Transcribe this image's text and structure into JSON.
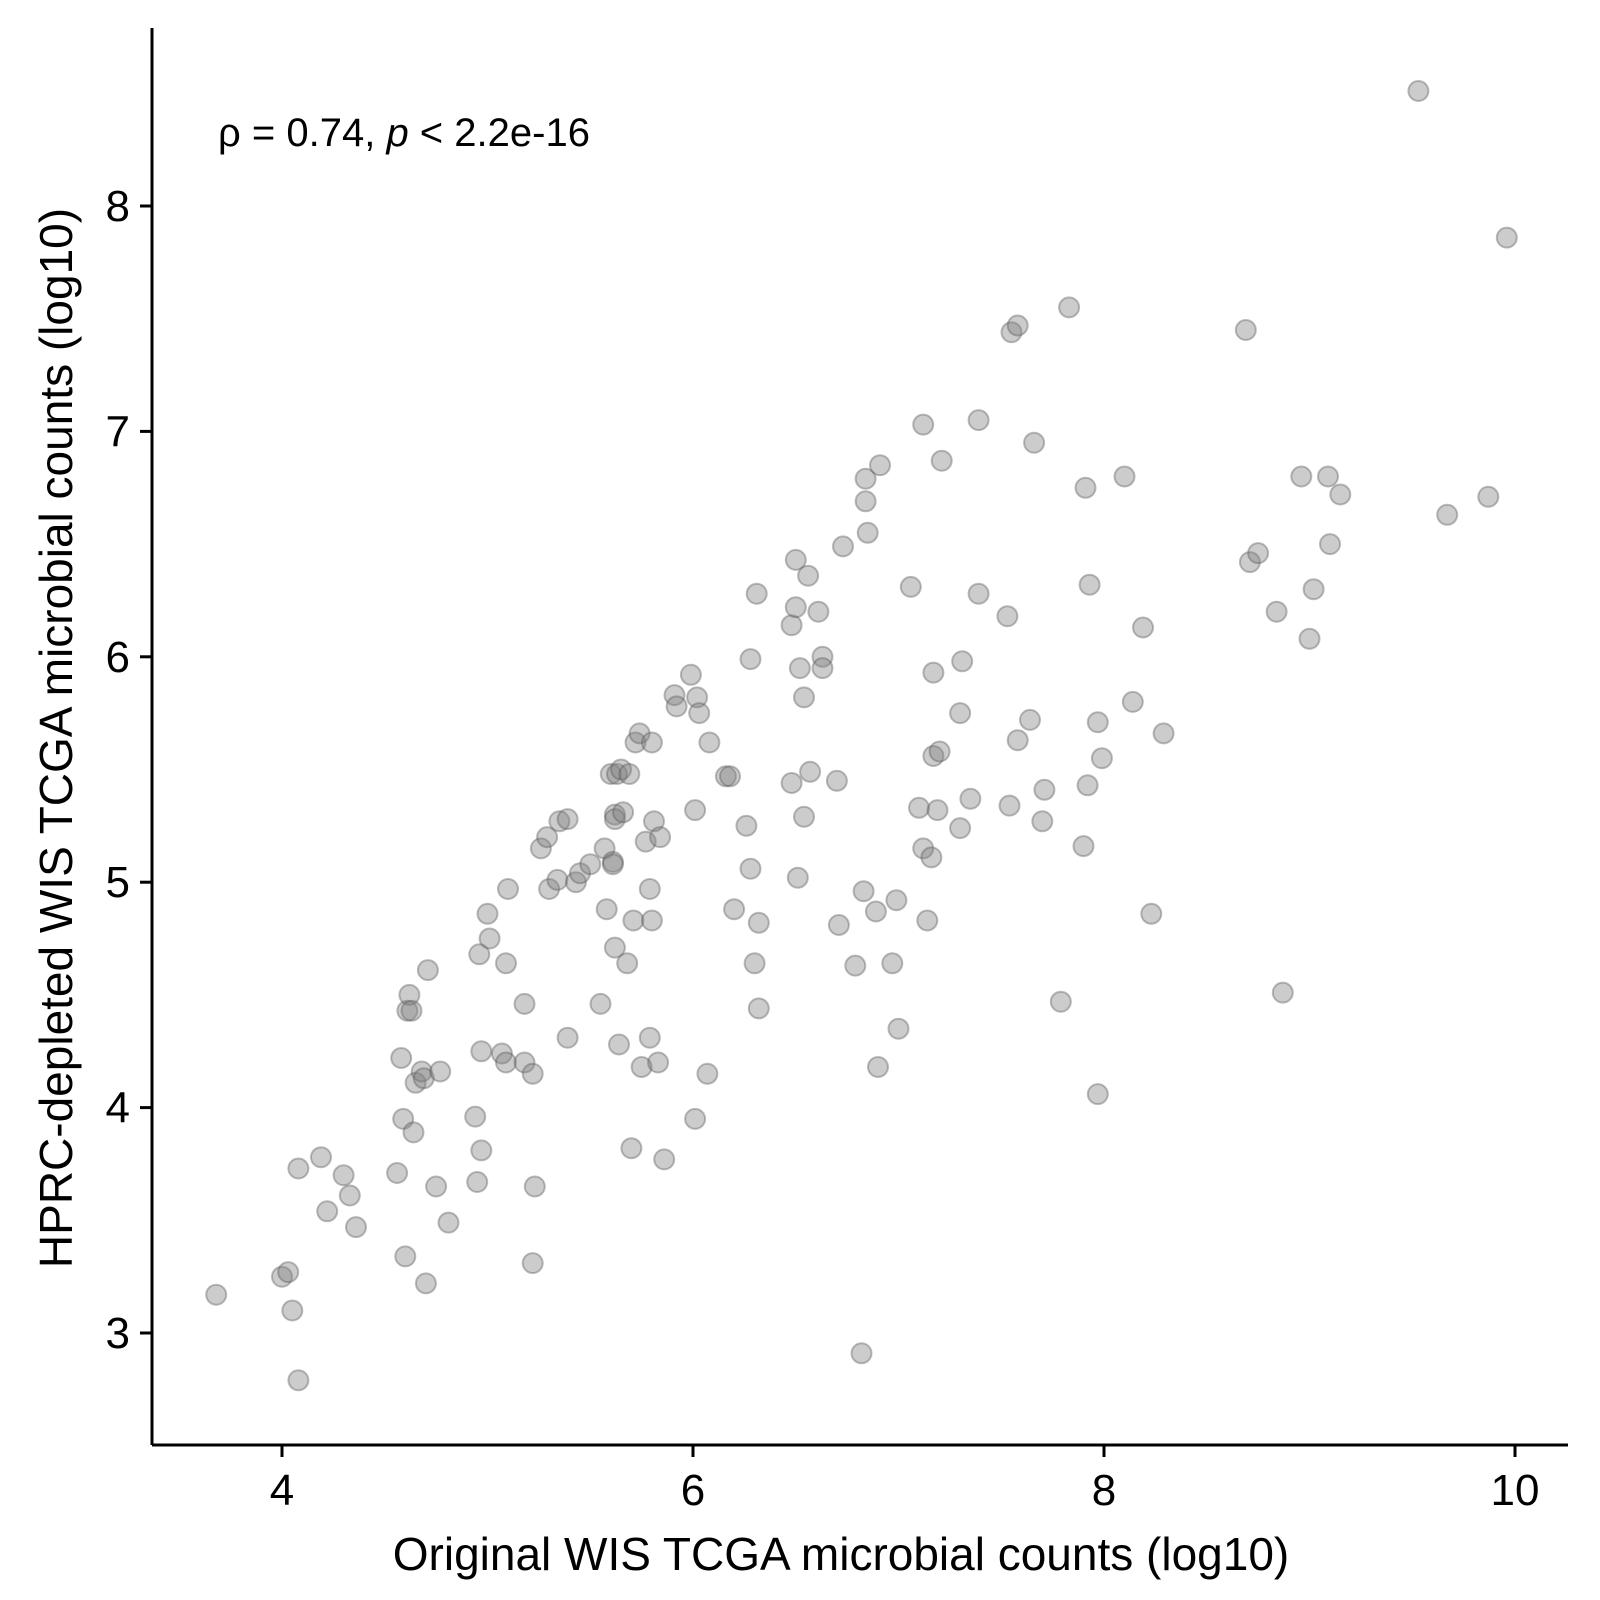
{
  "chart_data": {
    "type": "scatter",
    "xlabel": "Original WIS TCGA microbial counts (log10)",
    "ylabel": "HPRC-depleted WIS TCGA microbial counts (log10)",
    "annotation": {
      "rho_symbol": "ρ",
      "rho_text": " = 0.74, ",
      "p_symbol": "p",
      "p_text": " < 2.2e-16"
    },
    "xlim": [
      3.3,
      10.3
    ],
    "ylim": [
      2.5,
      8.8
    ],
    "xticks": [
      4,
      6,
      8,
      10
    ],
    "yticks": [
      3,
      4,
      5,
      6,
      7,
      8
    ],
    "xtick_labels": [
      "4",
      "6",
      "8",
      "10"
    ],
    "ytick_labels": [
      "3",
      "4",
      "5",
      "6",
      "7",
      "8"
    ],
    "grid": false,
    "legend": "none",
    "point_color": "#7f7f7f",
    "points": [
      [
        3.68,
        3.17
      ],
      [
        4.0,
        3.25
      ],
      [
        4.03,
        3.27
      ],
      [
        4.05,
        3.1
      ],
      [
        4.08,
        2.79
      ],
      [
        4.08,
        3.73
      ],
      [
        4.19,
        3.78
      ],
      [
        4.22,
        3.54
      ],
      [
        4.3,
        3.7
      ],
      [
        4.33,
        3.61
      ],
      [
        4.36,
        3.47
      ],
      [
        4.56,
        3.71
      ],
      [
        4.58,
        4.22
      ],
      [
        4.59,
        3.95
      ],
      [
        4.6,
        3.34
      ],
      [
        4.61,
        4.43
      ],
      [
        4.62,
        4.5
      ],
      [
        4.63,
        4.43
      ],
      [
        4.64,
        3.89
      ],
      [
        4.65,
        4.11
      ],
      [
        4.68,
        4.16
      ],
      [
        4.69,
        4.13
      ],
      [
        4.7,
        3.22
      ],
      [
        4.71,
        4.61
      ],
      [
        4.75,
        3.65
      ],
      [
        4.77,
        4.16
      ],
      [
        4.81,
        3.49
      ],
      [
        4.94,
        3.96
      ],
      [
        4.95,
        3.67
      ],
      [
        4.96,
        4.68
      ],
      [
        4.97,
        3.81
      ],
      [
        4.97,
        4.25
      ],
      [
        5.0,
        4.86
      ],
      [
        5.01,
        4.75
      ],
      [
        5.07,
        4.24
      ],
      [
        5.09,
        4.2
      ],
      [
        5.09,
        4.64
      ],
      [
        5.1,
        4.97
      ],
      [
        5.18,
        4.46
      ],
      [
        5.18,
        4.2
      ],
      [
        5.22,
        4.15
      ],
      [
        5.22,
        3.31
      ],
      [
        5.23,
        3.65
      ],
      [
        5.26,
        5.15
      ],
      [
        5.29,
        5.2
      ],
      [
        5.3,
        4.97
      ],
      [
        5.34,
        5.01
      ],
      [
        5.35,
        5.27
      ],
      [
        5.39,
        5.28
      ],
      [
        5.39,
        4.31
      ],
      [
        5.43,
        5.0
      ],
      [
        5.45,
        5.04
      ],
      [
        5.5,
        5.08
      ],
      [
        5.55,
        4.46
      ],
      [
        5.57,
        5.15
      ],
      [
        5.58,
        4.88
      ],
      [
        5.6,
        5.48
      ],
      [
        5.61,
        5.09
      ],
      [
        5.61,
        5.08
      ],
      [
        5.62,
        5.3
      ],
      [
        5.62,
        5.28
      ],
      [
        5.62,
        4.71
      ],
      [
        5.63,
        5.48
      ],
      [
        5.64,
        4.28
      ],
      [
        5.65,
        5.5
      ],
      [
        5.66,
        5.31
      ],
      [
        5.68,
        4.64
      ],
      [
        5.69,
        5.48
      ],
      [
        5.7,
        3.82
      ],
      [
        5.71,
        4.83
      ],
      [
        5.72,
        5.62
      ],
      [
        5.74,
        5.66
      ],
      [
        5.75,
        4.18
      ],
      [
        5.77,
        5.18
      ],
      [
        5.79,
        4.97
      ],
      [
        5.79,
        4.31
      ],
      [
        5.8,
        5.62
      ],
      [
        5.8,
        4.83
      ],
      [
        5.81,
        5.27
      ],
      [
        5.83,
        4.2
      ],
      [
        5.84,
        5.2
      ],
      [
        5.86,
        3.77
      ],
      [
        5.91,
        5.83
      ],
      [
        5.92,
        5.78
      ],
      [
        5.99,
        5.92
      ],
      [
        6.01,
        5.32
      ],
      [
        6.01,
        3.95
      ],
      [
        6.02,
        5.82
      ],
      [
        6.03,
        5.75
      ],
      [
        6.07,
        4.15
      ],
      [
        6.08,
        5.62
      ],
      [
        6.16,
        5.47
      ],
      [
        6.18,
        5.47
      ],
      [
        6.2,
        4.88
      ],
      [
        6.26,
        5.25
      ],
      [
        6.28,
        5.99
      ],
      [
        6.28,
        5.06
      ],
      [
        6.3,
        4.64
      ],
      [
        6.31,
        6.28
      ],
      [
        6.32,
        4.82
      ],
      [
        6.32,
        4.44
      ],
      [
        6.48,
        6.14
      ],
      [
        6.48,
        5.44
      ],
      [
        6.5,
        6.43
      ],
      [
        6.5,
        6.22
      ],
      [
        6.51,
        5.02
      ],
      [
        6.52,
        5.95
      ],
      [
        6.54,
        5.82
      ],
      [
        6.54,
        5.29
      ],
      [
        6.56,
        6.36
      ],
      [
        6.57,
        5.49
      ],
      [
        6.61,
        6.2
      ],
      [
        6.63,
        6.0
      ],
      [
        6.63,
        5.95
      ],
      [
        6.7,
        5.45
      ],
      [
        6.71,
        4.81
      ],
      [
        6.73,
        6.49
      ],
      [
        6.79,
        4.63
      ],
      [
        6.82,
        2.91
      ],
      [
        6.83,
        4.96
      ],
      [
        6.84,
        6.79
      ],
      [
        6.84,
        6.69
      ],
      [
        6.85,
        6.55
      ],
      [
        6.89,
        4.87
      ],
      [
        6.9,
        4.18
      ],
      [
        6.91,
        6.85
      ],
      [
        6.97,
        4.64
      ],
      [
        6.99,
        4.92
      ],
      [
        7.0,
        4.35
      ],
      [
        7.06,
        6.31
      ],
      [
        7.1,
        5.33
      ],
      [
        7.12,
        7.03
      ],
      [
        7.12,
        5.15
      ],
      [
        7.14,
        4.83
      ],
      [
        7.16,
        5.11
      ],
      [
        7.17,
        5.93
      ],
      [
        7.17,
        5.56
      ],
      [
        7.19,
        5.32
      ],
      [
        7.2,
        5.58
      ],
      [
        7.21,
        6.87
      ],
      [
        7.3,
        5.24
      ],
      [
        7.3,
        5.75
      ],
      [
        7.31,
        5.98
      ],
      [
        7.35,
        5.37
      ],
      [
        7.39,
        7.05
      ],
      [
        7.39,
        6.28
      ],
      [
        7.53,
        6.18
      ],
      [
        7.54,
        5.34
      ],
      [
        7.55,
        7.44
      ],
      [
        7.58,
        7.47
      ],
      [
        7.58,
        5.63
      ],
      [
        7.64,
        5.72
      ],
      [
        7.66,
        6.95
      ],
      [
        7.7,
        5.27
      ],
      [
        7.71,
        5.41
      ],
      [
        7.79,
        4.47
      ],
      [
        7.83,
        7.55
      ],
      [
        7.9,
        5.16
      ],
      [
        7.91,
        6.75
      ],
      [
        7.92,
        5.43
      ],
      [
        7.93,
        6.32
      ],
      [
        7.97,
        5.71
      ],
      [
        7.97,
        4.06
      ],
      [
        7.99,
        5.55
      ],
      [
        8.1,
        6.8
      ],
      [
        8.14,
        5.8
      ],
      [
        8.19,
        6.13
      ],
      [
        8.23,
        4.86
      ],
      [
        8.29,
        5.66
      ],
      [
        8.69,
        7.45
      ],
      [
        8.71,
        6.42
      ],
      [
        8.75,
        6.46
      ],
      [
        8.84,
        6.2
      ],
      [
        8.87,
        4.51
      ],
      [
        8.96,
        6.8
      ],
      [
        9.0,
        6.08
      ],
      [
        9.02,
        6.3
      ],
      [
        9.09,
        6.8
      ],
      [
        9.1,
        6.5
      ],
      [
        9.15,
        6.72
      ],
      [
        9.53,
        8.51
      ],
      [
        9.67,
        6.63
      ],
      [
        9.87,
        6.71
      ],
      [
        9.96,
        7.86
      ]
    ]
  }
}
